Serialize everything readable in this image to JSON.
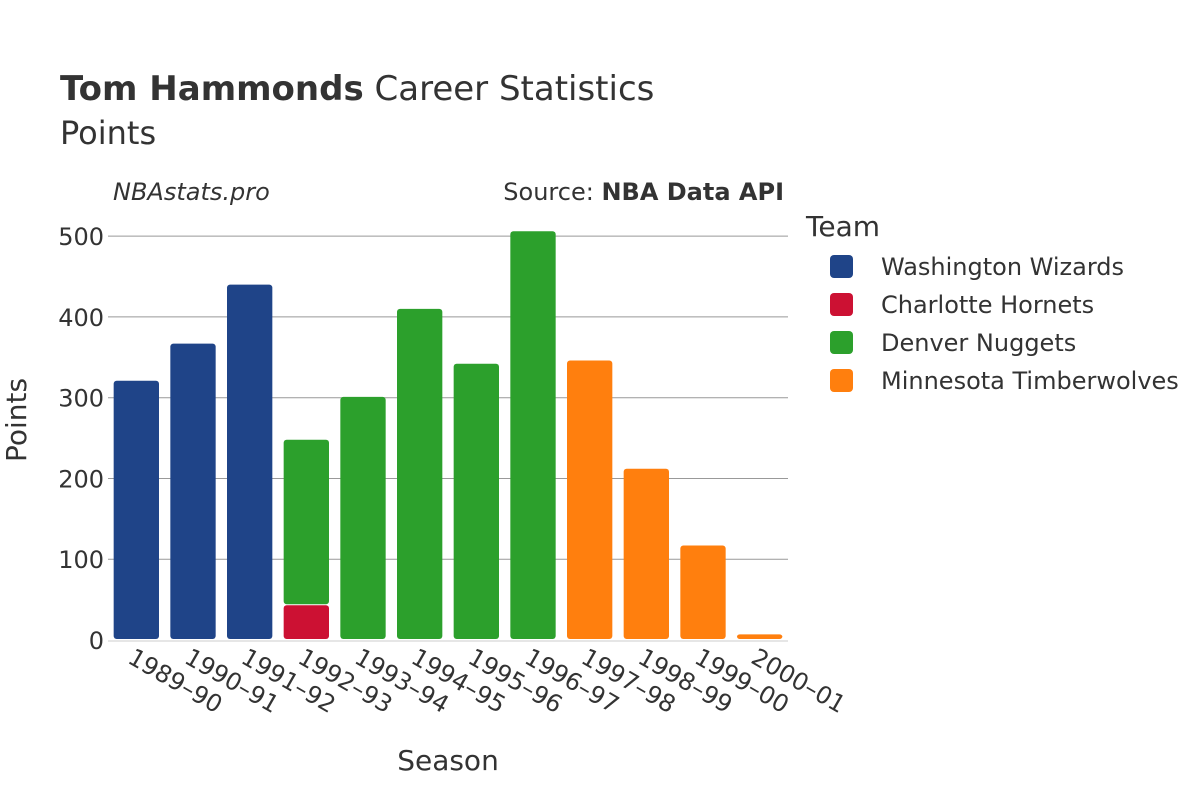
{
  "chart_data": {
    "type": "bar",
    "stacked": true,
    "title_player": "Tom Hammonds",
    "title_rest": " Career Statistics",
    "subtitle": "Points",
    "brand": "NBAstats.pro",
    "source_prefix": "Source: ",
    "source_name": "NBA Data API",
    "xlabel": "Season",
    "ylabel": "Points",
    "ylim": [
      0,
      520
    ],
    "yticks": [
      0,
      100,
      200,
      300,
      400,
      500
    ],
    "grid": true,
    "legend_title": "Team",
    "legend_placement": "right",
    "categories": [
      "1989–90",
      "1990–91",
      "1991–92",
      "1992–93",
      "1993–94",
      "1994–95",
      "1995–96",
      "1996–97",
      "1997–98",
      "1998–99",
      "1999–00",
      "2000–01"
    ],
    "series": [
      {
        "name": "Washington Wizards",
        "color": "#1f4488",
        "values": [
          321,
          367,
          440,
          0,
          0,
          0,
          0,
          0,
          0,
          0,
          0,
          0
        ]
      },
      {
        "name": "Charlotte Hornets",
        "color": "#cc1133",
        "values": [
          0,
          0,
          0,
          43,
          0,
          0,
          0,
          0,
          0,
          0,
          0,
          0
        ]
      },
      {
        "name": "Denver Nuggets",
        "color": "#2ca02c",
        "values": [
          0,
          0,
          0,
          205,
          301,
          410,
          342,
          506,
          0,
          0,
          0,
          0
        ]
      },
      {
        "name": "Minnesota Timberwolves",
        "color": "#ff7f0e",
        "values": [
          0,
          0,
          0,
          0,
          0,
          0,
          0,
          0,
          346,
          212,
          117,
          7
        ]
      }
    ]
  }
}
